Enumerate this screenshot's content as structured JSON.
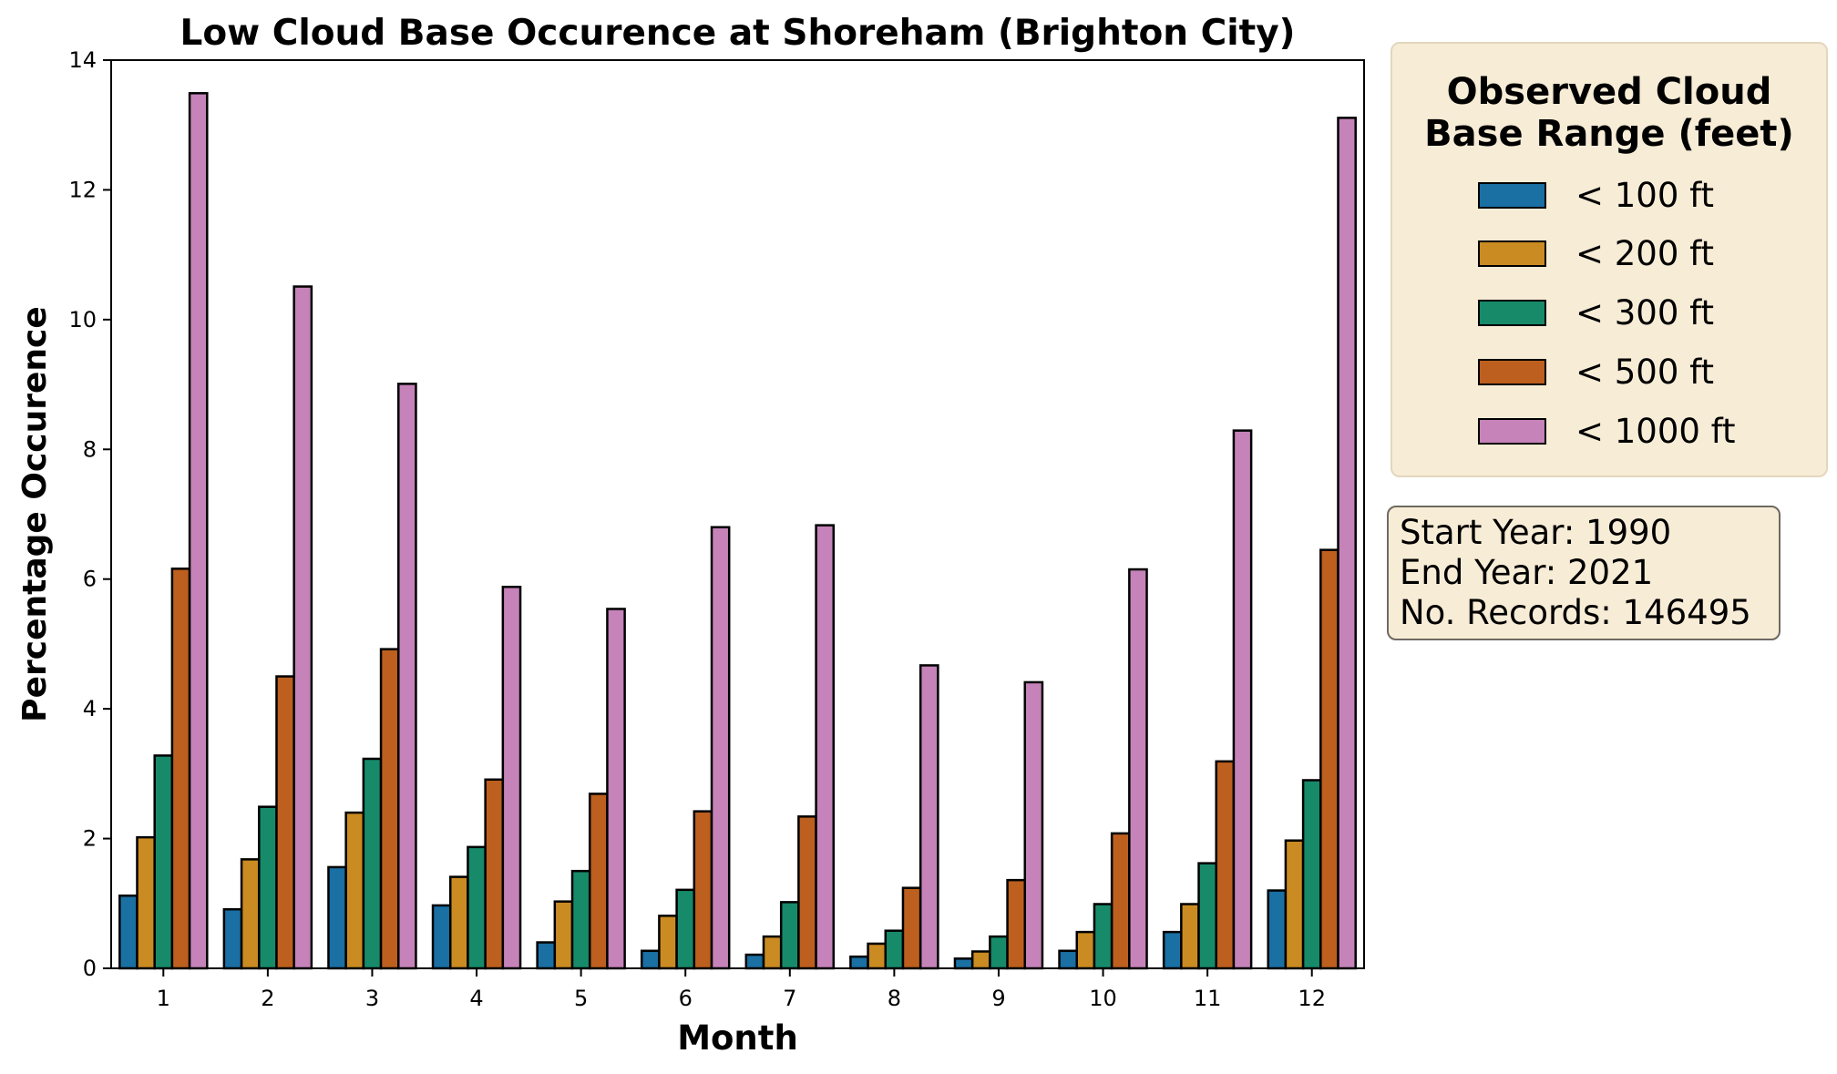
{
  "chart_data": {
    "type": "bar",
    "title": "Low Cloud Base Occurence at Shoreham (Brighton City)",
    "xlabel": "Month",
    "ylabel": "Percentage Occurence",
    "ylim": [
      0,
      14
    ],
    "yticks": [
      0,
      2,
      4,
      6,
      8,
      10,
      12,
      14
    ],
    "categories": [
      "1",
      "2",
      "3",
      "4",
      "5",
      "6",
      "7",
      "8",
      "9",
      "10",
      "11",
      "12"
    ],
    "series": [
      {
        "name": "< 100 ft",
        "color": "#1a6fa3",
        "values": [
          1.12,
          0.91,
          1.56,
          0.97,
          0.4,
          0.27,
          0.21,
          0.18,
          0.15,
          0.27,
          0.56,
          1.2
        ]
      },
      {
        "name": "< 200 ft",
        "color": "#c98b22",
        "values": [
          2.02,
          1.68,
          2.4,
          1.41,
          1.03,
          0.81,
          0.49,
          0.38,
          0.26,
          0.56,
          0.99,
          1.97
        ]
      },
      {
        "name": "< 300 ft",
        "color": "#178a6a",
        "values": [
          3.28,
          2.49,
          3.23,
          1.87,
          1.5,
          1.21,
          1.02,
          0.58,
          0.49,
          0.99,
          1.62,
          2.9
        ]
      },
      {
        "name": "< 500 ft",
        "color": "#bd5f1e",
        "values": [
          6.16,
          4.5,
          4.92,
          2.91,
          2.69,
          2.42,
          2.34,
          1.24,
          1.36,
          2.08,
          3.19,
          6.45
        ]
      },
      {
        "name": "< 1000 ft",
        "color": "#c583b9",
        "values": [
          13.49,
          10.51,
          9.01,
          5.88,
          5.54,
          6.8,
          6.83,
          4.67,
          4.41,
          6.15,
          8.29,
          13.11
        ]
      }
    ],
    "legend": {
      "title_lines": [
        "Observed Cloud",
        "Base Range (feet)"
      ],
      "placement": "right, outside plot"
    },
    "info_box": [
      "Start Year: 1990",
      "End Year: 2021",
      "No. Records: 146495"
    ],
    "grid": false
  }
}
